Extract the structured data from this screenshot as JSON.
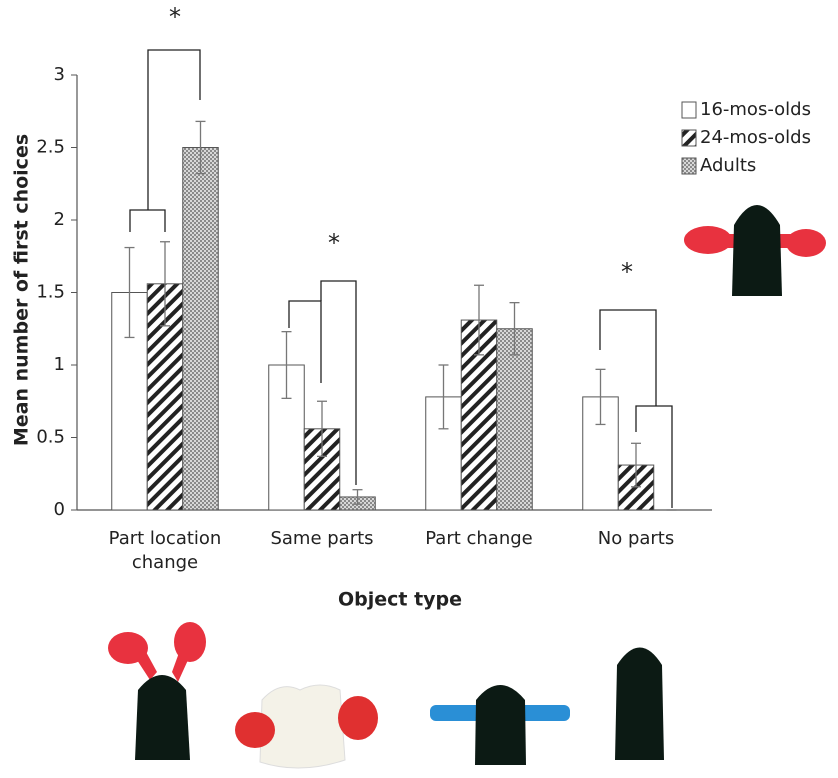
{
  "chart_data": {
    "type": "bar",
    "y_label": "Mean number of first choices",
    "x_label": "Object type",
    "categories": [
      "Part location change",
      "Same parts",
      "Part change",
      "No parts"
    ],
    "series": [
      {
        "name": "16-mos-olds",
        "color": "#ffffff",
        "pattern": "none",
        "values": [
          1.5,
          1.0,
          0.78,
          0.78
        ],
        "errors": [
          0.31,
          0.23,
          0.22,
          0.19
        ]
      },
      {
        "name": "24-mos-olds",
        "color": "#222222",
        "pattern": "diagonal",
        "values": [
          1.56,
          0.56,
          1.31,
          0.31
        ],
        "errors": [
          0.29,
          0.19,
          0.24,
          0.15
        ]
      },
      {
        "name": "Adults",
        "color": "#8a8a8a",
        "pattern": "dots",
        "values": [
          2.5,
          0.09,
          1.25,
          0.0
        ],
        "errors": [
          0.18,
          0.05,
          0.18,
          0.0
        ]
      }
    ],
    "annotations": [
      "*",
      "*",
      "*"
    ],
    "ylim": [
      0,
      3
    ],
    "yticks": [
      0,
      0.5,
      1,
      1.5,
      2,
      2.5,
      3
    ],
    "grid": false,
    "legend": "upper right"
  }
}
